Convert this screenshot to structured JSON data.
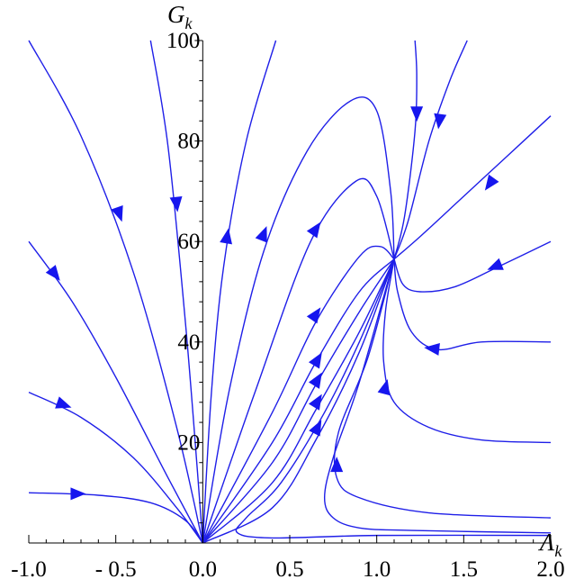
{
  "chart_data": {
    "type": "line",
    "title": "",
    "xlabel": "Λ",
    "xlabel_sub": "k",
    "ylabel": "G",
    "ylabel_sub": "k",
    "xlim": [
      -1.0,
      2.0
    ],
    "ylim": [
      0,
      100
    ],
    "x_ticks": [
      -1.0,
      -0.5,
      0.0,
      0.5,
      1.0,
      1.5,
      2.0
    ],
    "x_tick_labels": [
      "-1.0",
      "- 0.5",
      "0.0",
      "0.5",
      "1.0",
      "1.5",
      "2.0"
    ],
    "y_ticks": [
      20,
      40,
      60,
      80,
      100
    ],
    "y_tick_labels": [
      "20",
      "40",
      "60",
      "80",
      "100"
    ],
    "legend": "none",
    "grid": false,
    "line_color": "#1f1fe8",
    "arrow_color": "#1616ee",
    "fixed_points": [
      [
        0.0,
        0.0
      ],
      [
        1.1,
        56.5
      ]
    ],
    "series": [
      {
        "points": [
          [
            -1.0,
            10
          ],
          [
            -0.6,
            9.5
          ],
          [
            -0.3,
            8
          ],
          [
            -0.1,
            4.5
          ],
          [
            0.0,
            0
          ]
        ],
        "arrows": [
          [
            -0.72,
            9.8,
            1,
            0
          ]
        ]
      },
      {
        "points": [
          [
            -1.0,
            30
          ],
          [
            -0.7,
            25
          ],
          [
            -0.4,
            17
          ],
          [
            -0.15,
            7
          ],
          [
            0.0,
            0
          ]
        ],
        "arrows": [
          [
            -0.8,
            27.5,
            1,
            -0.3
          ]
        ]
      },
      {
        "points": [
          [
            -1.0,
            60
          ],
          [
            -0.75,
            48
          ],
          [
            -0.5,
            33
          ],
          [
            -0.2,
            13
          ],
          [
            0.0,
            0
          ]
        ],
        "arrows": [
          [
            -0.85,
            53.5,
            1,
            -1.1
          ]
        ]
      },
      {
        "points": [
          [
            -1.0,
            100
          ],
          [
            -0.7,
            81
          ],
          [
            -0.4,
            54
          ],
          [
            -0.15,
            23
          ],
          [
            0.0,
            0
          ]
        ],
        "arrows": [
          [
            -0.48,
            65.5,
            0.8,
            -2
          ]
        ]
      },
      {
        "points": [
          [
            -0.3,
            100
          ],
          [
            -0.2,
            79
          ],
          [
            -0.1,
            44
          ],
          [
            -0.03,
            14
          ],
          [
            0.0,
            0
          ]
        ],
        "arrows": [
          [
            -0.15,
            67.5,
            0.12,
            -1
          ]
        ]
      },
      {
        "points": [
          [
            0.0,
            0
          ],
          [
            0.05,
            30
          ],
          [
            0.12,
            55
          ],
          [
            0.25,
            80
          ],
          [
            0.42,
            100
          ]
        ],
        "arrows": [
          [
            0.14,
            61,
            0.2,
            1
          ]
        ]
      },
      {
        "points": [
          [
            0.0,
            0
          ],
          [
            0.15,
            30
          ],
          [
            0.35,
            58
          ],
          [
            0.6,
            78
          ],
          [
            0.85,
            88
          ],
          [
            1.0,
            86
          ],
          [
            1.08,
            70
          ],
          [
            1.1,
            56.5
          ]
        ],
        "arrows": [
          [
            0.35,
            61.5,
            0.45,
            1
          ]
        ]
      },
      {
        "points": [
          [
            0.0,
            0
          ],
          [
            0.3,
            30
          ],
          [
            0.62,
            60
          ],
          [
            0.88,
            72
          ],
          [
            1.0,
            69
          ],
          [
            1.1,
            56.5
          ]
        ],
        "arrows": [
          [
            0.65,
            62.5,
            0.8,
            1
          ]
        ]
      },
      {
        "points": [
          [
            0.0,
            0
          ],
          [
            0.4,
            26
          ],
          [
            0.65,
            44
          ],
          [
            0.9,
            57
          ],
          [
            1.02,
            59
          ],
          [
            1.1,
            56.5
          ]
        ],
        "arrows": [
          [
            0.65,
            45.5,
            0.8,
            1
          ]
        ]
      },
      {
        "points": [
          [
            0.0,
            0
          ],
          [
            0.4,
            20
          ],
          [
            0.65,
            36
          ],
          [
            0.9,
            50
          ],
          [
            1.1,
            56.5
          ]
        ],
        "arrows": [
          [
            0.66,
            36.5,
            0.7,
            1
          ]
        ]
      },
      {
        "points": [
          [
            0.0,
            0
          ],
          [
            0.4,
            16
          ],
          [
            0.65,
            31.5
          ],
          [
            0.9,
            46
          ],
          [
            1.1,
            56.5
          ]
        ],
        "arrows": [
          [
            0.66,
            32.5,
            0.7,
            1
          ]
        ]
      },
      {
        "points": [
          [
            0.0,
            0
          ],
          [
            0.4,
            12
          ],
          [
            0.65,
            26.5
          ],
          [
            0.9,
            42
          ],
          [
            1.1,
            56.5
          ]
        ],
        "arrows": [
          [
            0.66,
            28.2,
            0.7,
            1
          ]
        ]
      },
      {
        "points": [
          [
            0.0,
            0
          ],
          [
            0.4,
            7
          ],
          [
            0.65,
            20.5
          ],
          [
            0.9,
            38
          ],
          [
            1.1,
            56.5
          ]
        ],
        "arrows": [
          [
            0.66,
            23,
            0.6,
            1
          ]
        ]
      },
      {
        "points": [
          [
            2.0,
            1.5
          ],
          [
            1.0,
            1.5
          ],
          [
            0.4,
            1
          ],
          [
            0.2,
            2
          ],
          [
            0.25,
            5
          ],
          [
            0.45,
            12
          ],
          [
            0.7,
            26
          ],
          [
            0.9,
            40
          ],
          [
            1.1,
            56.5
          ]
        ],
        "arrows": []
      },
      {
        "points": [
          [
            2.0,
            2
          ],
          [
            1.2,
            2.5
          ],
          [
            0.9,
            3
          ],
          [
            0.75,
            5
          ],
          [
            0.7,
            9
          ],
          [
            0.75,
            17
          ],
          [
            0.9,
            32
          ],
          [
            1.1,
            56.5
          ]
        ],
        "arrows": []
      },
      {
        "points": [
          [
            2.0,
            5
          ],
          [
            1.3,
            6
          ],
          [
            0.9,
            9
          ],
          [
            0.77,
            13
          ],
          [
            0.78,
            22
          ],
          [
            0.95,
            37
          ],
          [
            1.1,
            56.5
          ]
        ],
        "arrows": [
          [
            0.77,
            15.5,
            0,
            1
          ]
        ]
      },
      {
        "points": [
          [
            2.0,
            20
          ],
          [
            1.6,
            20.5
          ],
          [
            1.3,
            23
          ],
          [
            1.1,
            28
          ],
          [
            1.04,
            36
          ],
          [
            1.05,
            46
          ],
          [
            1.1,
            56.5
          ]
        ],
        "arrows": [
          [
            1.05,
            31,
            0.3,
            1
          ]
        ]
      },
      {
        "points": [
          [
            2.0,
            40
          ],
          [
            1.6,
            40
          ],
          [
            1.35,
            38.5
          ],
          [
            1.2,
            42
          ],
          [
            1.12,
            50
          ],
          [
            1.1,
            56.5
          ]
        ],
        "arrows": [
          [
            1.32,
            38.7,
            -1,
            0.1
          ]
        ]
      },
      {
        "points": [
          [
            2.0,
            60
          ],
          [
            1.7,
            55
          ],
          [
            1.45,
            51
          ],
          [
            1.25,
            50
          ],
          [
            1.15,
            51.5
          ],
          [
            1.1,
            56.5
          ]
        ],
        "arrows": [
          [
            1.68,
            55,
            -1,
            -0.35
          ]
        ]
      },
      {
        "points": [
          [
            2.0,
            85
          ],
          [
            1.75,
            77
          ],
          [
            1.5,
            69
          ],
          [
            1.25,
            61
          ],
          [
            1.1,
            56.5
          ]
        ],
        "arrows": [
          [
            1.65,
            71.5,
            -1,
            -1.2
          ]
        ]
      },
      {
        "points": [
          [
            1.52,
            100
          ],
          [
            1.42,
            92
          ],
          [
            1.3,
            80
          ],
          [
            1.18,
            64
          ],
          [
            1.1,
            56.5
          ]
        ],
        "arrows": [
          [
            1.36,
            84,
            -0.15,
            -1
          ]
        ]
      },
      {
        "points": [
          [
            1.22,
            100
          ],
          [
            1.23,
            93
          ],
          [
            1.22,
            82
          ],
          [
            1.16,
            65
          ],
          [
            1.1,
            56.5
          ]
        ],
        "arrows": [
          [
            1.23,
            85.5,
            0,
            -1
          ]
        ]
      }
    ]
  }
}
